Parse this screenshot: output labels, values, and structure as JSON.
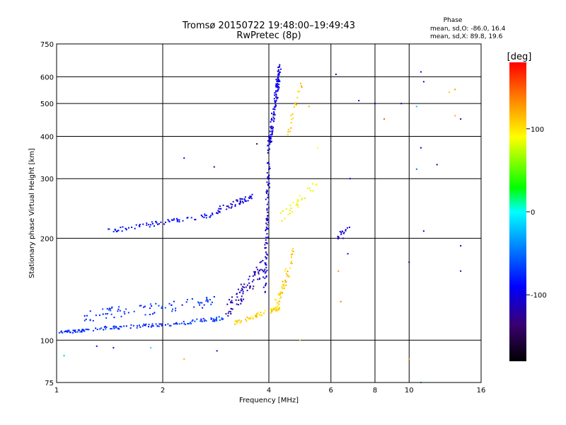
{
  "chart_data": {
    "type": "scatter",
    "title": "Tromsø 20150722 19:48:00–19:49:43",
    "subtitle": "RwPretec (8p)",
    "xlabel": "Frequency [MHz]",
    "ylabel": "Stationary phase Virtual Height [km]",
    "xscale": "log",
    "yscale": "log",
    "xlim": [
      1,
      16
    ],
    "ylim": [
      75,
      750
    ],
    "xticks": [
      1,
      2,
      4,
      6,
      8,
      10,
      16
    ],
    "xtick_labels": [
      "1",
      "2",
      "4",
      "6",
      "8",
      "10",
      "16"
    ],
    "yticks": [
      75,
      100,
      200,
      300,
      400,
      500,
      600,
      750
    ],
    "ytick_labels": [
      "75",
      "100",
      "200",
      "300",
      "400",
      "500",
      "600",
      "750"
    ],
    "grid": true,
    "phase_box": {
      "title": "Phase",
      "line_o": "mean, sd,O: -86.0, 16.4",
      "line_x": "mean, sd,X:  89.8, 19.6"
    },
    "colorbar": {
      "label": "[deg]",
      "range": [
        -180,
        180
      ],
      "ticks": [
        100,
        0,
        -100
      ],
      "tick_labels": [
        "100",
        "0",
        "-100"
      ]
    },
    "traces": [
      {
        "from": [
          1.0,
          105
        ],
        "to": [
          1.3,
          108
        ],
        "phase": -75,
        "n": 40,
        "spread": 0.01
      },
      {
        "from": [
          1.3,
          108
        ],
        "to": [
          2.2,
          112
        ],
        "phase": -75,
        "n": 60,
        "spread": 0.012
      },
      {
        "from": [
          2.2,
          112
        ],
        "to": [
          3.0,
          116
        ],
        "phase": -70,
        "n": 40,
        "spread": 0.015
      },
      {
        "from": [
          1.2,
          118
        ],
        "to": [
          2.8,
          130
        ],
        "phase": -72,
        "n": 80,
        "spread": 0.04
      },
      {
        "from": [
          1.4,
          210
        ],
        "to": [
          2.8,
          235
        ],
        "phase": -88,
        "n": 70,
        "spread": 0.015
      },
      {
        "from": [
          2.8,
          240
        ],
        "to": [
          3.6,
          265
        ],
        "phase": -100,
        "n": 50,
        "spread": 0.02
      },
      {
        "from": [
          3.0,
          120
        ],
        "to": [
          3.9,
          165
        ],
        "phase": -115,
        "n": 80,
        "spread": 0.06
      },
      {
        "from": [
          3.9,
          140
        ],
        "to": [
          4.0,
          360
        ],
        "phase": -105,
        "n": 90,
        "spread": 0.08
      },
      {
        "from": [
          4.0,
          370
        ],
        "to": [
          4.3,
          640
        ],
        "phase": -100,
        "n": 120,
        "spread": 0.03
      },
      {
        "from": [
          3.2,
          112
        ],
        "to": [
          4.3,
          125
        ],
        "phase": 105,
        "n": 60,
        "spread": 0.015
      },
      {
        "from": [
          4.2,
          125
        ],
        "to": [
          4.7,
          180
        ],
        "phase": 110,
        "n": 50,
        "spread": 0.05
      },
      {
        "from": [
          4.3,
          230
        ],
        "to": [
          5.5,
          290
        ],
        "phase": 90,
        "n": 30,
        "spread": 0.03
      },
      {
        "from": [
          4.5,
          400
        ],
        "to": [
          5.0,
          600
        ],
        "phase": 110,
        "n": 20,
        "spread": 0.03
      },
      {
        "from": [
          6.2,
          200
        ],
        "to": [
          6.8,
          220
        ],
        "phase": -110,
        "n": 15,
        "spread": 0.02
      }
    ],
    "outliers": [
      [
        1.05,
        90,
        -20
      ],
      [
        1.3,
        96,
        -90
      ],
      [
        1.45,
        95,
        -120
      ],
      [
        1.85,
        95,
        -10
      ],
      [
        2.3,
        88,
        120
      ],
      [
        2.85,
        93,
        -110
      ],
      [
        2.3,
        345,
        -100
      ],
      [
        2.8,
        325,
        -110
      ],
      [
        3.7,
        380,
        -150
      ],
      [
        6.2,
        610,
        -100
      ],
      [
        6.3,
        160,
        130
      ],
      [
        6.4,
        130,
        140
      ],
      [
        6.8,
        300,
        -90
      ],
      [
        7.2,
        510,
        -90
      ],
      [
        8.0,
        500,
        -110
      ],
      [
        8.5,
        450,
        150
      ],
      [
        9.5,
        500,
        -110
      ],
      [
        10.5,
        490,
        -20
      ],
      [
        10.8,
        620,
        -100
      ],
      [
        10.8,
        370,
        -100
      ],
      [
        10.5,
        320,
        -50
      ],
      [
        11,
        580,
        -120
      ],
      [
        11,
        210,
        -100
      ],
      [
        12,
        330,
        -120
      ],
      [
        13,
        540,
        110
      ],
      [
        13.5,
        550,
        130
      ],
      [
        13.5,
        460,
        120
      ],
      [
        14,
        450,
        -110
      ],
      [
        14,
        190,
        -110
      ],
      [
        14,
        160,
        -110
      ],
      [
        10,
        170,
        -110
      ],
      [
        10,
        88,
        130
      ],
      [
        10.8,
        75,
        -20
      ],
      [
        6.5,
        200,
        -110
      ],
      [
        6.7,
        180,
        -110
      ],
      [
        5.5,
        370,
        90
      ],
      [
        5.2,
        490,
        120
      ],
      [
        4.9,
        100,
        60
      ]
    ]
  }
}
